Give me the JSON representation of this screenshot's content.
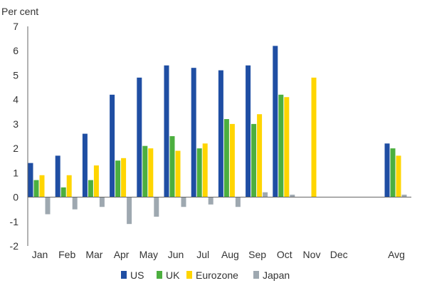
{
  "chart_data": {
    "type": "bar",
    "title": "",
    "xlabel": "",
    "ylabel": "Per cent",
    "ylim": [
      -2,
      7
    ],
    "yticks": [
      -2,
      -1,
      0,
      1,
      2,
      3,
      4,
      5,
      6,
      7
    ],
    "grid": false,
    "legend_position": "bottom",
    "categories": [
      "Jan",
      "Feb",
      "Mar",
      "Apr",
      "May",
      "Jun",
      "Jul",
      "Aug",
      "Sep",
      "Oct",
      "Nov",
      "Dec",
      "Avg"
    ],
    "series": [
      {
        "name": "US",
        "color": "#1f4ea3",
        "values": [
          1.4,
          1.7,
          2.6,
          4.2,
          4.9,
          5.4,
          5.3,
          5.2,
          5.4,
          6.2,
          null,
          null,
          2.2
        ]
      },
      {
        "name": "UK",
        "color": "#4caf3f",
        "values": [
          0.7,
          0.4,
          0.7,
          1.5,
          2.1,
          2.5,
          2.0,
          3.2,
          3.0,
          4.2,
          null,
          null,
          2.0
        ]
      },
      {
        "name": "Eurozone",
        "color": "#ffd500",
        "values": [
          0.9,
          0.9,
          1.3,
          1.6,
          2.0,
          1.9,
          2.2,
          3.0,
          3.4,
          4.1,
          4.9,
          null,
          1.7
        ]
      },
      {
        "name": "Japan",
        "color": "#9ea8b0",
        "values": [
          -0.7,
          -0.5,
          -0.4,
          -1.1,
          -0.8,
          -0.4,
          -0.3,
          -0.4,
          0.2,
          0.1,
          null,
          null,
          0.1
        ]
      }
    ]
  }
}
